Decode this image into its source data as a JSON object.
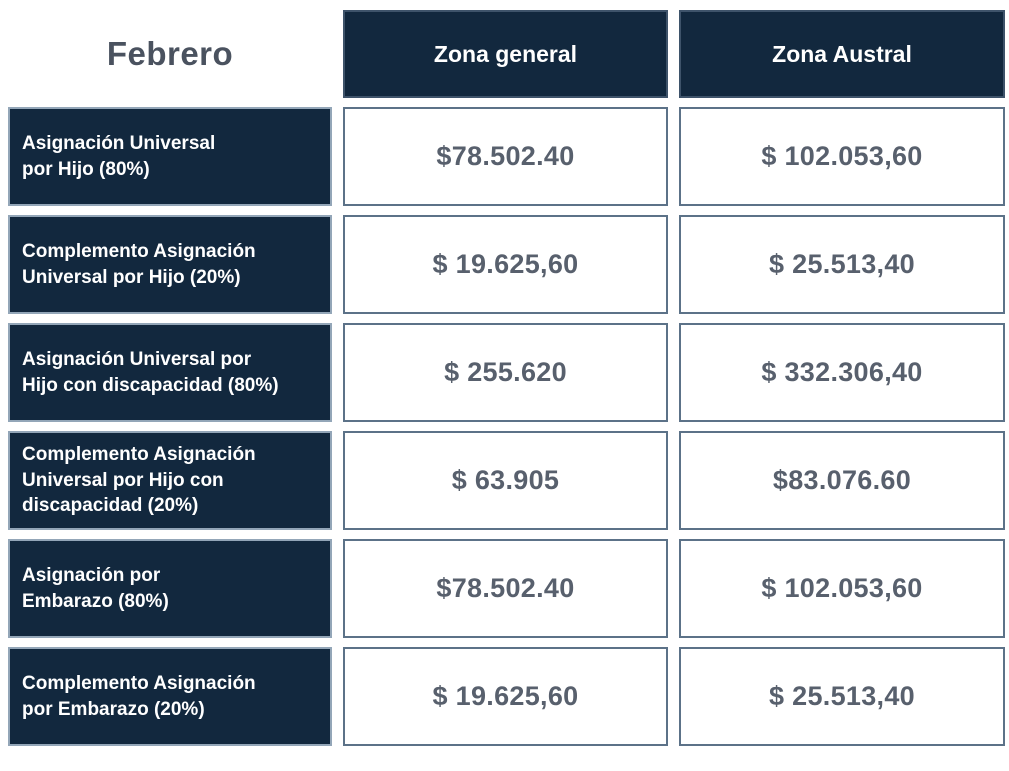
{
  "header": {
    "month": "Febrero",
    "col_general": "Zona general",
    "col_austral": "Zona Austral"
  },
  "rows": [
    {
      "label": "Asignación Universal\npor Hijo (80%)",
      "general": "$78.502.40",
      "austral": "$ 102.053,60"
    },
    {
      "label": "Complemento Asignación\nUniversal por Hijo (20%)",
      "general": "$ 19.625,60",
      "austral": "$ 25.513,40"
    },
    {
      "label": "Asignación Universal por\nHijo con discapacidad (80%)",
      "general": "$ 255.620",
      "austral": "$ 332.306,40"
    },
    {
      "label": "Complemento Asignación\nUniversal por Hijo con\ndiscapacidad (20%)",
      "general": "$ 63.905",
      "austral": "$83.076.60"
    },
    {
      "label": "Asignación por\nEmbarazo (80%)",
      "general": "$78.502.40",
      "austral": "$ 102.053,60"
    },
    {
      "label": "Complemento Asignación\npor Embarazo (20%)",
      "general": "$ 19.625,60",
      "austral": "$ 25.513,40"
    }
  ],
  "colors": {
    "navy": "#12283E",
    "value_border": "#5C7288",
    "value_text": "#58606D",
    "month_text": "#4A525F"
  },
  "chart_data": {
    "type": "table",
    "title": "Febrero",
    "columns": [
      "",
      "Zona general",
      "Zona Austral"
    ],
    "rows": [
      [
        "Asignación Universal por Hijo (80%)",
        "$78.502.40",
        "$ 102.053,60"
      ],
      [
        "Complemento Asignación Universal por Hijo (20%)",
        "$ 19.625,60",
        "$ 25.513,40"
      ],
      [
        "Asignación Universal por Hijo con discapacidad (80%)",
        "$ 255.620",
        "$ 332.306,40"
      ],
      [
        "Complemento Asignación Universal por Hijo con discapacidad (20%)",
        "$ 63.905",
        "$83.076.60"
      ],
      [
        "Asignación por Embarazo (80%)",
        "$78.502.40",
        "$ 102.053,60"
      ],
      [
        "Complemento Asignación por Embarazo (20%)",
        "$ 19.625,60",
        "$ 25.513,40"
      ]
    ]
  }
}
